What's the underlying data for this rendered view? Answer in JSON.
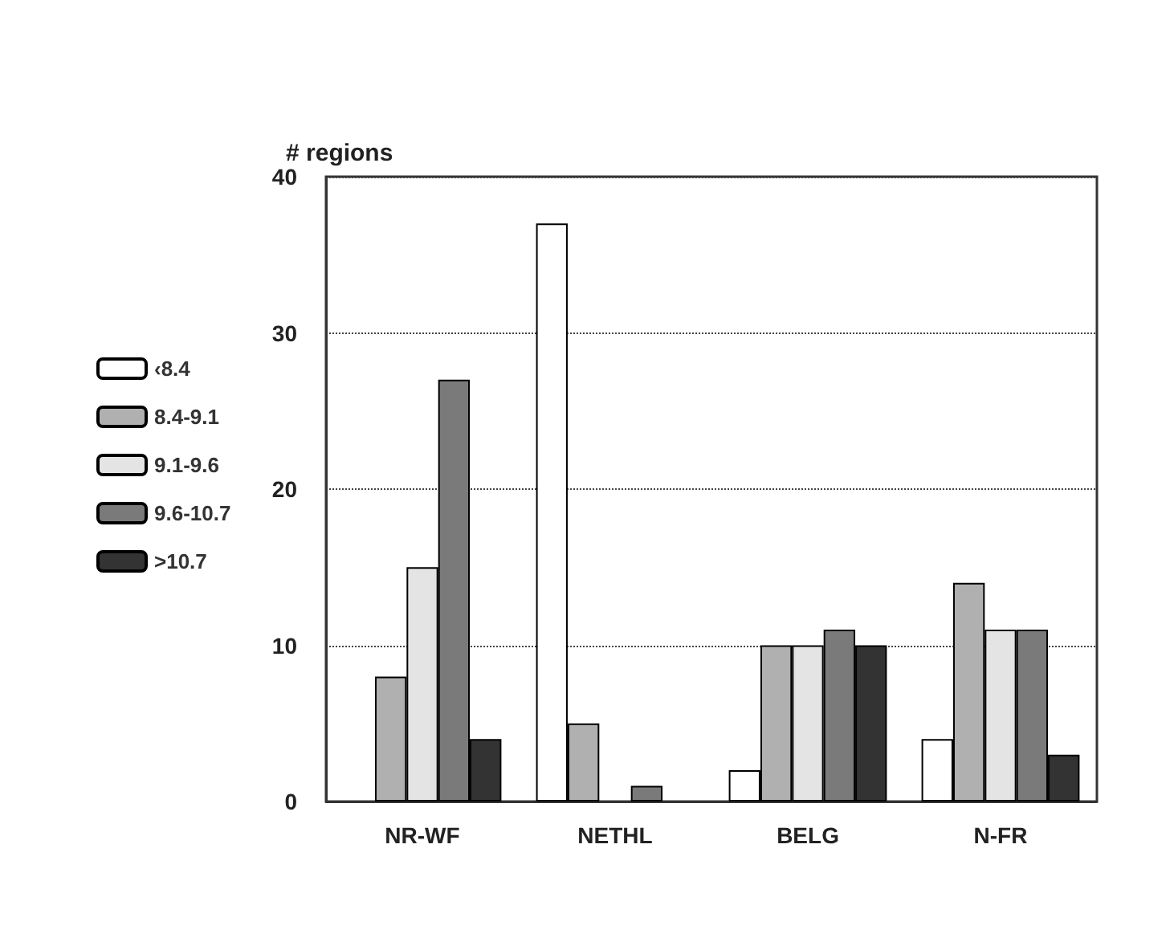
{
  "chart_data": {
    "type": "bar",
    "ylabel": "# regions",
    "categories": [
      "NR-WF",
      "NETHL",
      "BELG",
      "N-FR"
    ],
    "series": [
      {
        "name": "‹8.4",
        "color": "#ffffff",
        "values": [
          0,
          37,
          2,
          4
        ]
      },
      {
        "name": "8.4-9.1",
        "color": "#b0b0b0",
        "values": [
          8,
          5,
          10,
          14
        ]
      },
      {
        "name": "9.1-9.6",
        "color": "#e4e4e4",
        "values": [
          15,
          0,
          10,
          11
        ]
      },
      {
        "name": "9.6-10.7",
        "color": "#7a7a7a",
        "values": [
          27,
          1,
          11,
          11
        ]
      },
      {
        "name": ">10.7",
        "color": "#333333",
        "values": [
          4,
          0,
          10,
          3
        ]
      }
    ],
    "ylim": [
      0,
      40
    ],
    "yticks": [
      0,
      10,
      20,
      30,
      40
    ],
    "grid": "y",
    "legend": "left"
  }
}
